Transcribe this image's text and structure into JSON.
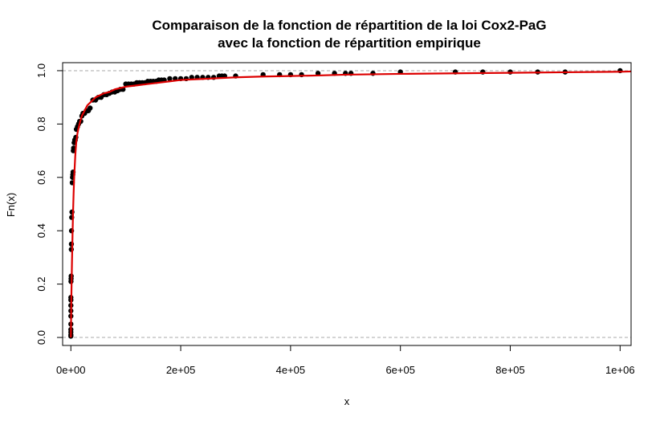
{
  "chart_data": {
    "type": "scatter",
    "title": [
      "Comparaison de la fonction de répartition de la loi Cox2-PaG",
      "avec la fonction de répartition empirique"
    ],
    "xlabel": "x",
    "ylabel": "Fn(x)",
    "xlim": [
      -15000,
      1020000
    ],
    "ylim": [
      -0.03,
      1.03
    ],
    "x_ticks": [
      0,
      200000,
      400000,
      600000,
      800000,
      1000000
    ],
    "x_tick_labels": [
      "0e+00",
      "2e+05",
      "4e+05",
      "6e+05",
      "8e+05",
      "1e+06"
    ],
    "y_ticks": [
      0.0,
      0.2,
      0.4,
      0.6,
      0.8,
      1.0
    ],
    "y_tick_labels": [
      "0.0",
      "0.2",
      "0.4",
      "0.6",
      "0.8",
      "1.0"
    ],
    "reference_lines": [
      0,
      1
    ],
    "grid": false,
    "series": [
      {
        "kind": "points",
        "color": "#000000",
        "x": [
          0,
          0,
          0,
          0,
          0,
          0,
          0,
          0,
          0,
          0,
          200,
          400,
          600,
          800,
          1000,
          1200,
          1500,
          2000,
          2500,
          3000,
          3500,
          4000,
          4500,
          5000,
          6000,
          7000,
          8000,
          9000,
          10000,
          12000,
          14000,
          16000,
          18000,
          20000,
          22000,
          25000,
          28000,
          30000,
          32000,
          35000,
          40000,
          45000,
          50000,
          55000,
          60000,
          65000,
          70000,
          75000,
          80000,
          85000,
          90000,
          95000,
          100000,
          105000,
          110000,
          115000,
          120000,
          125000,
          130000,
          135000,
          140000,
          145000,
          150000,
          155000,
          160000,
          165000,
          170000,
          180000,
          190000,
          200000,
          210000,
          220000,
          230000,
          240000,
          250000,
          260000,
          270000,
          275000,
          280000,
          300000,
          350000,
          380000,
          400000,
          420000,
          450000,
          480000,
          500000,
          510000,
          550000,
          600000,
          700000,
          750000,
          800000,
          850000,
          900000,
          1000000
        ],
        "y": [
          0.005,
          0.01,
          0.02,
          0.03,
          0.05,
          0.08,
          0.1,
          0.12,
          0.14,
          0.15,
          0.21,
          0.22,
          0.23,
          0.33,
          0.35,
          0.4,
          0.45,
          0.47,
          0.58,
          0.6,
          0.61,
          0.62,
          0.7,
          0.71,
          0.73,
          0.74,
          0.74,
          0.75,
          0.78,
          0.79,
          0.8,
          0.81,
          0.81,
          0.83,
          0.84,
          0.84,
          0.85,
          0.85,
          0.85,
          0.86,
          0.89,
          0.89,
          0.9,
          0.9,
          0.91,
          0.91,
          0.915,
          0.92,
          0.92,
          0.925,
          0.93,
          0.93,
          0.95,
          0.95,
          0.95,
          0.95,
          0.955,
          0.955,
          0.955,
          0.955,
          0.96,
          0.96,
          0.96,
          0.96,
          0.965,
          0.965,
          0.965,
          0.97,
          0.97,
          0.97,
          0.97,
          0.975,
          0.975,
          0.975,
          0.975,
          0.975,
          0.98,
          0.98,
          0.98,
          0.98,
          0.985,
          0.985,
          0.985,
          0.985,
          0.99,
          0.99,
          0.99,
          0.99,
          0.99,
          0.995,
          0.995,
          0.995,
          0.995,
          0.995,
          0.995,
          1.0
        ]
      },
      {
        "kind": "line",
        "color": "#dd0000",
        "x": [
          0,
          1000,
          2000,
          3000,
          4000,
          5000,
          6000,
          7000,
          8000,
          9000,
          10000,
          12000,
          14000,
          17000,
          20000,
          25000,
          30000,
          35000,
          40000,
          45000,
          50000,
          60000,
          70000,
          80000,
          90000,
          100000,
          120000,
          140000,
          160000,
          180000,
          200000,
          250000,
          300000,
          350000,
          400000,
          450000,
          500000,
          600000,
          700000,
          800000,
          900000,
          1000000,
          1020000
        ],
        "y": [
          0.0,
          0.16,
          0.28,
          0.38,
          0.47,
          0.54,
          0.6,
          0.64,
          0.68,
          0.71,
          0.735,
          0.765,
          0.785,
          0.81,
          0.83,
          0.85,
          0.87,
          0.88,
          0.89,
          0.9,
          0.905,
          0.915,
          0.92,
          0.93,
          0.935,
          0.94,
          0.945,
          0.95,
          0.955,
          0.96,
          0.965,
          0.97,
          0.975,
          0.978,
          0.98,
          0.982,
          0.985,
          0.988,
          0.99,
          0.992,
          0.994,
          0.996,
          0.997
        ]
      }
    ]
  }
}
